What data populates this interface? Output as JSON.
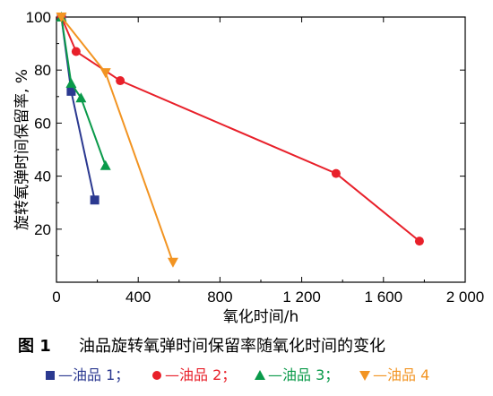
{
  "chart_data": {
    "type": "line",
    "xlabel": "氧化时间/h",
    "ylabel": "旋转氧弹时间保留率, %",
    "xlim": [
      0,
      2000
    ],
    "ylim": [
      0,
      100
    ],
    "xticks": [
      0,
      400,
      800,
      1200,
      1600,
      2000
    ],
    "xtick_labels": [
      "0",
      "400",
      "800",
      "1 200",
      "1 600",
      "2 000"
    ],
    "yticks": [
      20,
      40,
      60,
      80,
      100
    ],
    "ytick_labels": [
      "20",
      "40",
      "60",
      "80",
      "100"
    ],
    "grid": false,
    "legend_position": "bottom",
    "series": [
      {
        "name": "油品 1",
        "color": "#2b3990",
        "marker": "square",
        "x": [
          24,
          72,
          187
        ],
        "y": [
          100,
          72,
          31
        ]
      },
      {
        "name": "油品 2",
        "color": "#e8202a",
        "marker": "circle",
        "x": [
          24,
          96,
          312,
          1368,
          1776
        ],
        "y": [
          100,
          87,
          76,
          41,
          15.5
        ]
      },
      {
        "name": "油品 3",
        "color": "#0a9a4a",
        "marker": "triangle-up",
        "x": [
          24,
          72,
          120,
          240
        ],
        "y": [
          100,
          75,
          69.5,
          44
        ]
      },
      {
        "name": "油品 4",
        "color": "#f29422",
        "marker": "triangle-down",
        "x": [
          24,
          240,
          570
        ],
        "y": [
          100,
          79,
          7.5
        ]
      }
    ]
  },
  "caption": {
    "label": "图 1",
    "text": "油品旋转氧弹时间保留率随氧化时间的变化"
  },
  "legend": {
    "separator": "—",
    "delimiter": "；"
  }
}
